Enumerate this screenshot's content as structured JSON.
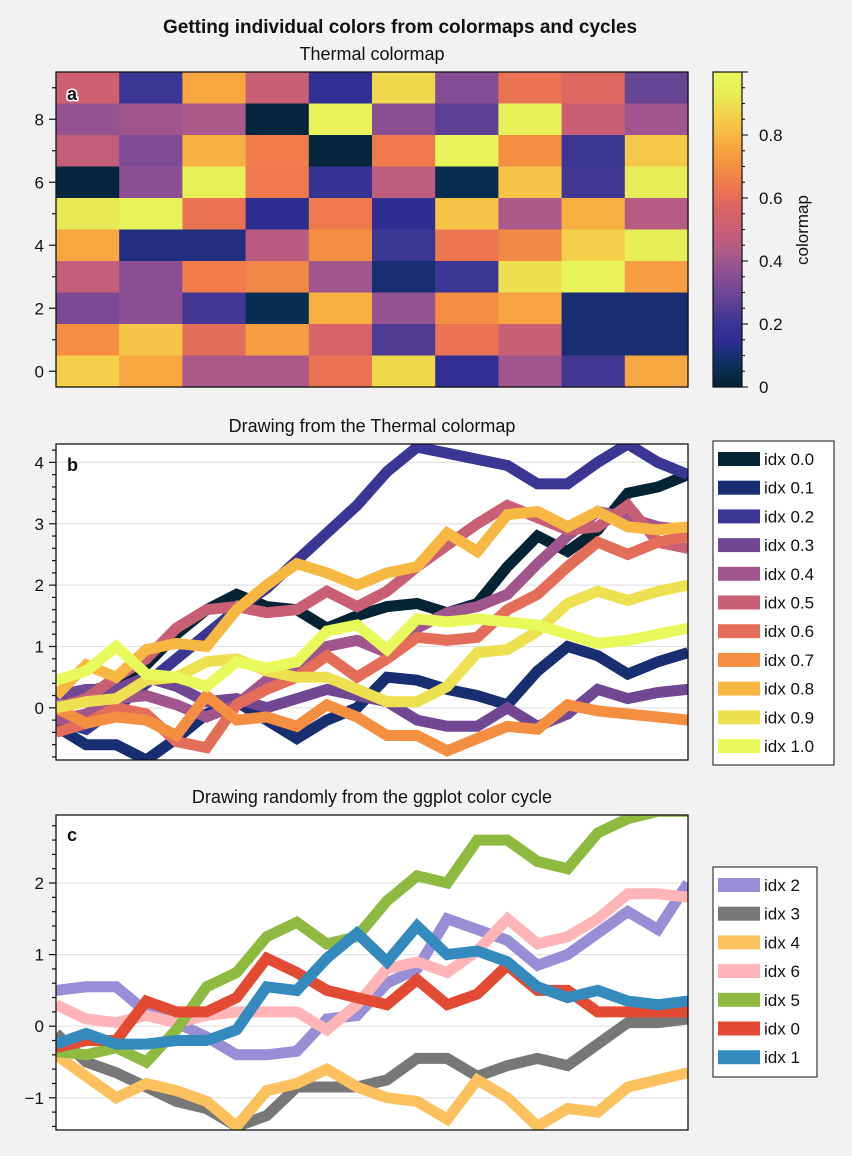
{
  "suptitle": "Getting individual colors from colormaps and cycles",
  "colors": {
    "thermal": [
      "#042333",
      "#0b2f5c",
      "#2d2d91",
      "#3f3794",
      "#6a4594",
      "#8b4f95",
      "#ae5a88",
      "#c95f75",
      "#dd6462",
      "#ef7a4c",
      "#f59440",
      "#f8b142",
      "#f4cf49",
      "#e8ec57",
      "#e8fa5b"
    ],
    "ggplot": {
      "idx 0": "#e24a33",
      "idx 1": "#348abd",
      "idx 2": "#988ed5",
      "idx 3": "#777777",
      "idx 4": "#fbc15e",
      "idx 5": "#8eba42",
      "idx 6": "#ffb5b8"
    }
  },
  "chart_data": [
    {
      "panel_label": "a",
      "type": "heatmap",
      "title": "Thermal colormap",
      "ylim": [
        -0.5,
        9.5
      ],
      "yticks": [
        0,
        2,
        4,
        6,
        8
      ],
      "colorbar": {
        "label": "colormap",
        "range": [
          0,
          1
        ],
        "ticks": [
          "0",
          "0.2",
          "0.4",
          "0.6",
          "0.8"
        ]
      },
      "rows_top_to_bottom": [
        [
          0.52,
          0.2,
          0.76,
          0.5,
          0.16,
          0.88,
          0.34,
          0.62,
          0.58,
          0.28
        ],
        [
          0.38,
          0.4,
          0.42,
          0.02,
          0.97,
          0.36,
          0.26,
          0.95,
          0.5,
          0.4
        ],
        [
          0.48,
          0.33,
          0.78,
          0.65,
          0.02,
          0.64,
          0.97,
          0.7,
          0.2,
          0.84
        ],
        [
          0.02,
          0.36,
          0.95,
          0.64,
          0.18,
          0.47,
          0.05,
          0.83,
          0.22,
          0.93
        ],
        [
          0.92,
          0.96,
          0.62,
          0.14,
          0.64,
          0.15,
          0.83,
          0.42,
          0.78,
          0.45
        ],
        [
          0.76,
          0.12,
          0.12,
          0.46,
          0.7,
          0.2,
          0.63,
          0.68,
          0.86,
          0.94
        ],
        [
          0.48,
          0.36,
          0.65,
          0.68,
          0.4,
          0.1,
          0.2,
          0.9,
          0.96,
          0.74
        ],
        [
          0.32,
          0.36,
          0.22,
          0.06,
          0.78,
          0.38,
          0.7,
          0.75,
          0.1,
          0.1
        ],
        [
          0.7,
          0.83,
          0.6,
          0.74,
          0.55,
          0.24,
          0.62,
          0.5,
          0.1,
          0.1
        ],
        [
          0.86,
          0.76,
          0.42,
          0.42,
          0.62,
          0.88,
          0.16,
          0.4,
          0.22,
          0.76
        ]
      ]
    },
    {
      "panel_label": "b",
      "type": "line",
      "title": "Drawing from the Thermal colormap",
      "xlim": [
        0,
        21
      ],
      "ylim": [
        -0.85,
        4.3
      ],
      "yticks": [
        0,
        1,
        2,
        3,
        4
      ],
      "series": [
        {
          "name": "idx 0.0",
          "cmap_pos": 0.0,
          "values": [
            -0.05,
            0.25,
            0.4,
            0.7,
            1.2,
            1.6,
            1.85,
            1.65,
            1.6,
            1.3,
            1.5,
            1.65,
            1.7,
            1.55,
            1.7,
            2.3,
            2.8,
            2.55,
            2.9,
            3.5,
            3.6,
            3.8
          ]
        },
        {
          "name": "idx 0.1",
          "cmap_pos": 0.1,
          "values": [
            -0.3,
            -0.6,
            -0.6,
            -0.85,
            -0.5,
            -0.1,
            0.1,
            -0.2,
            -0.5,
            -0.2,
            0.0,
            0.5,
            0.45,
            0.3,
            0.2,
            0.05,
            0.6,
            1.0,
            0.85,
            0.55,
            0.75,
            0.9
          ]
        },
        {
          "name": "idx 0.2",
          "cmap_pos": 0.2,
          "values": [
            -0.2,
            -0.35,
            0.0,
            0.4,
            0.8,
            1.2,
            1.6,
            1.95,
            2.4,
            2.85,
            3.3,
            3.85,
            4.25,
            4.15,
            4.05,
            3.95,
            3.65,
            3.65,
            4.0,
            4.3,
            4.0,
            3.8
          ]
        },
        {
          "name": "idx 0.3",
          "cmap_pos": 0.3,
          "values": [
            0.2,
            0.3,
            0.3,
            0.5,
            0.35,
            0.1,
            0.15,
            0.0,
            0.15,
            0.3,
            0.2,
            0.1,
            -0.2,
            -0.3,
            -0.3,
            0.0,
            -0.3,
            -0.1,
            0.3,
            0.15,
            0.25,
            0.3
          ]
        },
        {
          "name": "idx 0.4",
          "cmap_pos": 0.4,
          "values": [
            -0.2,
            -0.1,
            0.15,
            0.2,
            0.05,
            -0.15,
            0.05,
            0.45,
            0.7,
            1.0,
            1.1,
            0.9,
            1.3,
            1.55,
            1.65,
            1.85,
            2.35,
            2.8,
            3.2,
            3.1,
            2.95,
            2.9
          ]
        },
        {
          "name": "idx 0.5",
          "cmap_pos": 0.5,
          "values": [
            0.0,
            0.15,
            0.5,
            0.8,
            1.3,
            1.6,
            1.65,
            1.55,
            1.6,
            1.9,
            1.65,
            1.9,
            2.3,
            2.65,
            3.0,
            3.3,
            3.1,
            2.9,
            2.95,
            3.3,
            2.7,
            2.6
          ]
        },
        {
          "name": "idx 0.6",
          "cmap_pos": 0.6,
          "values": [
            -0.4,
            -0.25,
            0.0,
            -0.1,
            -0.55,
            -0.65,
            0.05,
            0.3,
            0.5,
            0.85,
            0.5,
            0.8,
            1.15,
            1.1,
            1.15,
            1.6,
            1.85,
            2.3,
            2.7,
            2.5,
            2.7,
            2.8
          ]
        },
        {
          "name": "idx 0.7",
          "cmap_pos": 0.7,
          "values": [
            0.0,
            -0.25,
            -0.15,
            -0.2,
            -0.45,
            0.2,
            -0.2,
            -0.15,
            -0.3,
            0.05,
            -0.15,
            -0.45,
            -0.45,
            -0.7,
            -0.5,
            -0.3,
            -0.35,
            0.05,
            -0.05,
            -0.1,
            -0.15,
            -0.2
          ]
        },
        {
          "name": "idx 0.8",
          "cmap_pos": 0.8,
          "values": [
            0.2,
            0.7,
            0.5,
            0.95,
            1.05,
            1.0,
            1.6,
            2.0,
            2.35,
            2.2,
            2.0,
            2.2,
            2.3,
            2.85,
            2.55,
            3.15,
            3.2,
            2.95,
            3.2,
            2.95,
            2.9,
            2.95
          ]
        },
        {
          "name": "idx 0.9",
          "cmap_pos": 0.9,
          "values": [
            0.0,
            0.1,
            0.15,
            0.45,
            0.5,
            0.75,
            0.8,
            0.6,
            0.5,
            0.5,
            0.3,
            0.1,
            0.1,
            0.35,
            0.9,
            0.95,
            1.25,
            1.7,
            1.9,
            1.75,
            1.9,
            2.0
          ]
        },
        {
          "name": "idx 1.0",
          "cmap_pos": 1.0,
          "values": [
            0.45,
            0.6,
            1.0,
            0.55,
            0.5,
            0.35,
            0.75,
            0.65,
            0.75,
            1.25,
            1.35,
            0.95,
            1.45,
            1.4,
            1.45,
            1.4,
            1.35,
            1.2,
            1.05,
            1.1,
            1.2,
            1.3
          ]
        }
      ],
      "legend": "right"
    },
    {
      "panel_label": "c",
      "type": "line",
      "title": "Drawing randomly from the ggplot color cycle",
      "xlim": [
        0,
        21
      ],
      "ylim": [
        -1.45,
        2.95
      ],
      "yticks": [
        -1,
        0,
        1,
        2
      ],
      "ytick_labels": [
        "−1",
        "0",
        "1",
        "2"
      ],
      "series": [
        {
          "name": "idx 2",
          "values": [
            0.5,
            0.55,
            0.55,
            0.2,
            0.05,
            -0.15,
            -0.4,
            -0.4,
            -0.35,
            0.1,
            0.15,
            0.6,
            0.8,
            1.5,
            1.35,
            1.2,
            0.85,
            1.0,
            1.3,
            1.6,
            1.35,
            2.0
          ]
        },
        {
          "name": "idx 3",
          "values": [
            -0.1,
            -0.5,
            -0.65,
            -0.85,
            -1.05,
            -1.15,
            -1.4,
            -1.25,
            -0.85,
            -0.85,
            -0.85,
            -0.75,
            -0.45,
            -0.45,
            -0.7,
            -0.55,
            -0.45,
            -0.55,
            -0.25,
            0.05,
            0.05,
            0.1
          ]
        },
        {
          "name": "idx 4",
          "values": [
            -0.4,
            -0.7,
            -1.0,
            -0.8,
            -0.9,
            -1.05,
            -1.4,
            -0.9,
            -0.8,
            -0.6,
            -0.85,
            -1.0,
            -1.05,
            -1.3,
            -0.75,
            -1.0,
            -1.4,
            -1.15,
            -1.2,
            -0.85,
            -0.75,
            -0.65
          ]
        },
        {
          "name": "idx 6",
          "values": [
            0.3,
            0.1,
            0.05,
            0.15,
            0.05,
            0.15,
            0.2,
            0.2,
            0.2,
            -0.05,
            0.3,
            0.8,
            0.9,
            0.75,
            1.05,
            1.5,
            1.15,
            1.25,
            1.5,
            1.85,
            1.85,
            1.8
          ]
        },
        {
          "name": "idx 5",
          "values": [
            -0.35,
            -0.4,
            -0.3,
            -0.5,
            -0.05,
            0.55,
            0.75,
            1.25,
            1.45,
            1.15,
            1.25,
            1.75,
            2.1,
            2.0,
            2.6,
            2.6,
            2.3,
            2.2,
            2.7,
            2.9,
            3.0,
            3.0
          ]
        },
        {
          "name": "idx 0",
          "values": [
            -0.3,
            -0.2,
            -0.2,
            0.35,
            0.2,
            0.2,
            0.4,
            0.95,
            0.75,
            0.5,
            0.4,
            0.3,
            0.65,
            0.3,
            0.45,
            0.85,
            0.5,
            0.5,
            0.2,
            0.2,
            0.2,
            0.2
          ]
        },
        {
          "name": "idx 1",
          "values": [
            -0.25,
            -0.1,
            -0.25,
            -0.25,
            -0.2,
            -0.2,
            -0.05,
            0.55,
            0.5,
            0.95,
            1.3,
            0.9,
            1.4,
            1.0,
            1.05,
            0.9,
            0.55,
            0.4,
            0.5,
            0.35,
            0.3,
            0.35
          ]
        }
      ],
      "legend": "right"
    }
  ]
}
